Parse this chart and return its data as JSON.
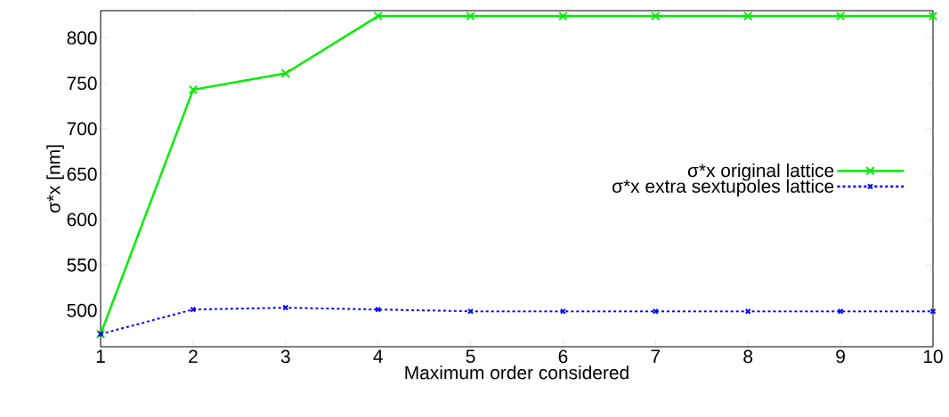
{
  "chart_data": {
    "type": "line",
    "xlabel": "Maximum order considered",
    "ylabel": "σ*x  [nm]",
    "x": [
      1,
      2,
      3,
      4,
      5,
      6,
      7,
      8,
      9,
      10
    ],
    "series": [
      {
        "name": "σ*x original lattice",
        "color": "#00ee00",
        "line_style": "solid",
        "values": [
          474,
          743,
          761,
          824,
          824,
          824,
          824,
          824,
          824,
          824
        ]
      },
      {
        "name": "σ*x extra sextupoles lattice",
        "color": "#0000ff",
        "line_style": "dashed",
        "values": [
          474,
          501,
          503,
          501,
          499,
          499,
          499,
          499,
          499,
          499
        ]
      }
    ],
    "xlim": [
      1,
      10
    ],
    "xticks": [
      1,
      2,
      3,
      4,
      5,
      6,
      7,
      8,
      9,
      10
    ],
    "ylim": [
      460,
      830
    ],
    "yticks": [
      500,
      550,
      600,
      650,
      700,
      750,
      800
    ],
    "marker": "cross",
    "legend": "right",
    "grid": false
  }
}
